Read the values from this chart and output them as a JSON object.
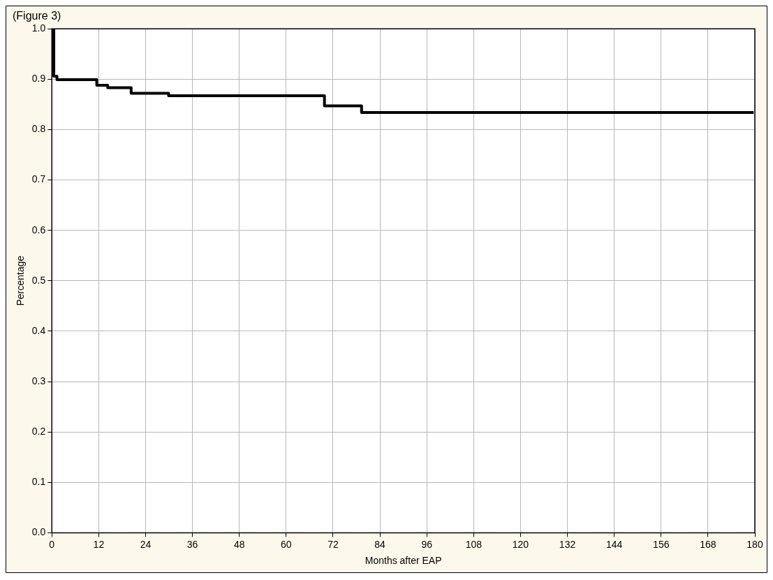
{
  "chart_data": {
    "type": "step",
    "title": "(Figure 3)",
    "xlabel": "Months after EAP",
    "ylabel": "Percentage",
    "series": [
      {
        "color": "#000000",
        "x": [
          0,
          0.5,
          1.3,
          11.5,
          14.3,
          20.3,
          29.9,
          69.8,
          79.3,
          179.7
        ],
        "values": [
          1.0,
          0.906,
          0.899,
          0.888,
          0.883,
          0.872,
          0.867,
          0.847,
          0.834,
          0.834
        ]
      }
    ],
    "xlim": [
      0,
      180
    ],
    "xticks": [
      0,
      12,
      24,
      36,
      48,
      60,
      72,
      84,
      96,
      108,
      120,
      132,
      144,
      156,
      168,
      180
    ],
    "ylim": [
      0,
      1
    ],
    "yticks": [
      {
        "value": 0,
        "label": "0.0"
      },
      0.1,
      0.2,
      0.3,
      0.4,
      0.5,
      0.6,
      0.7,
      0.8,
      0.9,
      {
        "value": 1,
        "label": "1.0"
      }
    ],
    "grid": true,
    "legend": false,
    "marker": "none",
    "line_style": "solid"
  }
}
